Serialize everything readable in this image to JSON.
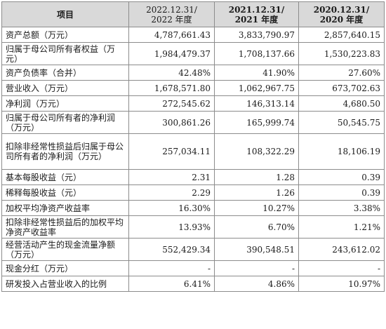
{
  "table": {
    "headers": [
      {
        "text": "项目"
      },
      {
        "line1": "2022.12.31/",
        "line2": "2022 年度"
      },
      {
        "line1": "2021.12.31/",
        "line2": "2021 年度"
      },
      {
        "line1": "2020.12.31/",
        "line2": "2020 年度"
      }
    ],
    "rows": [
      {
        "label": "资产总额（万元）",
        "values": [
          "4,787,661.43",
          "3,833,790.97",
          "2,857,640.15"
        ]
      },
      {
        "label": "归属于母公司所有者权益（万元）",
        "values": [
          "1,984,479.37",
          "1,708,137.66",
          "1,530,223.83"
        ]
      },
      {
        "label": "资产负债率（合并）",
        "values": [
          "42.48%",
          "41.90%",
          "27.60%"
        ]
      },
      {
        "label": "营业收入（万元）",
        "values": [
          "1,678,571.80",
          "1,062,967.75",
          "673,702.63"
        ]
      },
      {
        "label": "净利润（万元）",
        "values": [
          "272,545.62",
          "146,313.14",
          "4,680.50"
        ]
      },
      {
        "label": "归属于母公司所有者的净利润（万元）",
        "values": [
          "300,861.26",
          "165,999.74",
          "50,545.75"
        ]
      },
      {
        "label": "扣除非经常性损益后归属于母公司所有者的净利润（万元）",
        "values": [
          "257,034.11",
          "108,322.29",
          "18,106.19"
        ]
      },
      {
        "label": "基本每股收益（元）",
        "values": [
          "2.31",
          "1.28",
          "0.39"
        ]
      },
      {
        "label": "稀释每股收益（元）",
        "values": [
          "2.29",
          "1.26",
          "0.39"
        ]
      },
      {
        "label": "加权平均净资产收益率",
        "values": [
          "16.30%",
          "10.27%",
          "3.38%"
        ]
      },
      {
        "label": "扣除非经常性损益后的加权平均净资产收益率",
        "values": [
          "13.93%",
          "6.70%",
          "1.21%"
        ]
      },
      {
        "label": "经营活动产生的现金流量净额（万元）",
        "values": [
          "552,429.34",
          "390,548.51",
          "243,612.02"
        ]
      },
      {
        "label": "现金分红（万元）",
        "values": [
          "-",
          "-",
          "-"
        ]
      },
      {
        "label": "研发投入占营业收入的比例",
        "values": [
          "6.41%",
          "4.86%",
          "10.97%"
        ]
      }
    ]
  }
}
